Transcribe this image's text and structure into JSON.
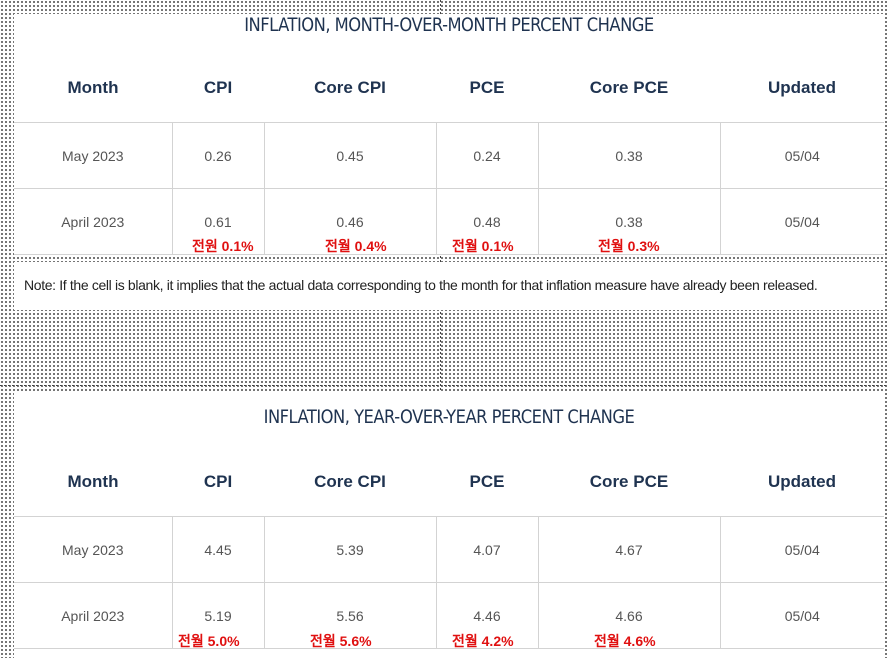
{
  "mom": {
    "title": "INFLATION, MONTH-OVER-MONTH PERCENT CHANGE",
    "headers": [
      "Month",
      "CPI",
      "Core CPI",
      "PCE",
      "Core PCE",
      "Updated"
    ],
    "rows": [
      [
        "May 2023",
        "0.26",
        "0.45",
        "0.24",
        "0.38",
        "05/04"
      ],
      [
        "April 2023",
        "0.61",
        "0.46",
        "0.48",
        "0.38",
        "05/04"
      ]
    ],
    "annotations": [
      "전원 0.1%",
      "전월 0.4%",
      "전월 0.1%",
      "전월 0.3%"
    ]
  },
  "note": "Note: If the cell is blank, it implies that the actual data corresponding to the month for that inflation measure have already been released.",
  "yoy": {
    "title": "INFLATION, YEAR-OVER-YEAR PERCENT CHANGE",
    "headers": [
      "Month",
      "CPI",
      "Core CPI",
      "PCE",
      "Core PCE",
      "Updated"
    ],
    "rows": [
      [
        "May 2023",
        "4.45",
        "5.39",
        "4.07",
        "4.67",
        "05/04"
      ],
      [
        "April 2023",
        "5.19",
        "5.56",
        "4.46",
        "4.66",
        "05/04"
      ]
    ],
    "annotations": [
      "전월 5.0%",
      "전월 5.6%",
      "전월 4.2%",
      "전월 4.6%"
    ]
  },
  "colors": {
    "title": "#1f3350",
    "annotation": "#e01010",
    "cell_text": "#555555"
  }
}
